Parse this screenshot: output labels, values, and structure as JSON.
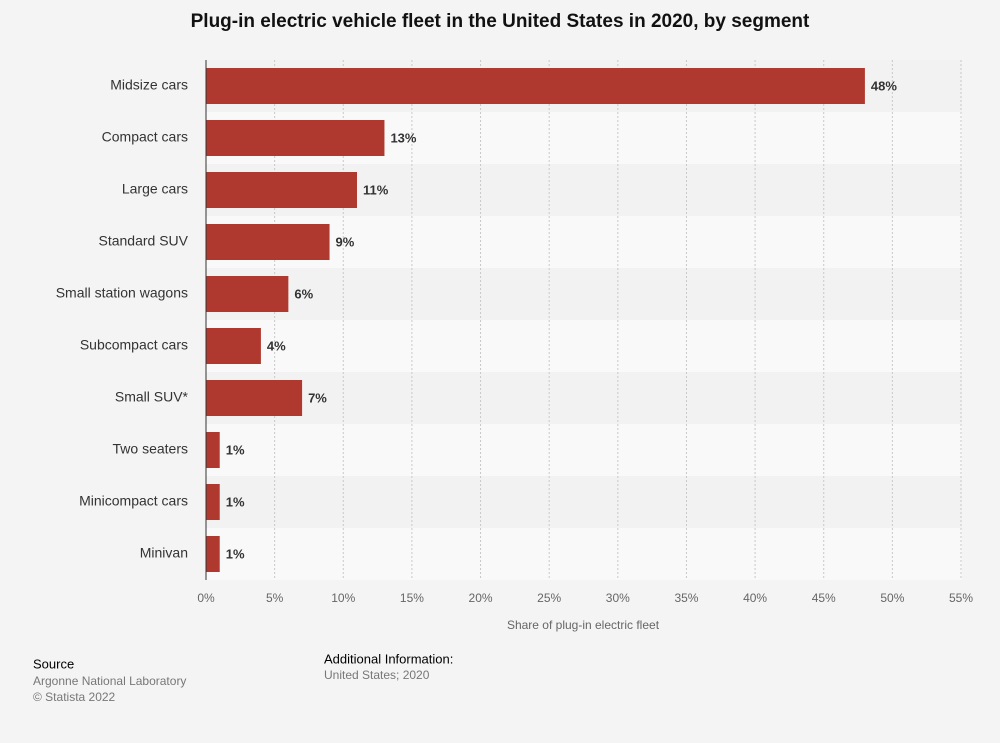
{
  "chart_data": {
    "type": "bar",
    "orientation": "horizontal",
    "title": "Plug-in electric vehicle fleet in the United States in 2020, by segment",
    "categories": [
      "Midsize cars",
      "Compact cars",
      "Large cars",
      "Standard SUV",
      "Small station wagons",
      "Subcompact cars",
      "Small SUV*",
      "Two seaters",
      "Minicompact cars",
      "Minivan"
    ],
    "values": [
      48,
      13,
      11,
      9,
      6,
      4,
      7,
      1,
      1,
      1
    ],
    "value_labels": [
      "48%",
      "13%",
      "11%",
      "9%",
      "6%",
      "4%",
      "7%",
      "1%",
      "1%",
      "1%"
    ],
    "color": "#b0392f",
    "xlim": [
      0,
      55
    ],
    "xticks": [
      {
        "value": 0,
        "label": "0%"
      },
      {
        "value": 5,
        "label": "5%"
      },
      {
        "value": 10,
        "label": "10%"
      },
      {
        "value": 15,
        "label": "15%"
      },
      {
        "value": 20,
        "label": "20%"
      },
      {
        "value": 25,
        "label": "25%"
      },
      {
        "value": 30,
        "label": "30%"
      },
      {
        "value": 35,
        "label": "35%"
      },
      {
        "value": 40,
        "label": "40%"
      },
      {
        "value": 45,
        "label": "45%"
      },
      {
        "value": 50,
        "label": "50%"
      },
      {
        "value": 55,
        "label": "55%"
      }
    ],
    "xlabel": "Share of plug-in electric fleet",
    "grid": true,
    "source_label": "Source",
    "source": "Argonne National Laboratory",
    "copyright": "© Statista 2022",
    "info_label": "Additional Information:",
    "info": "United States; 2020"
  }
}
